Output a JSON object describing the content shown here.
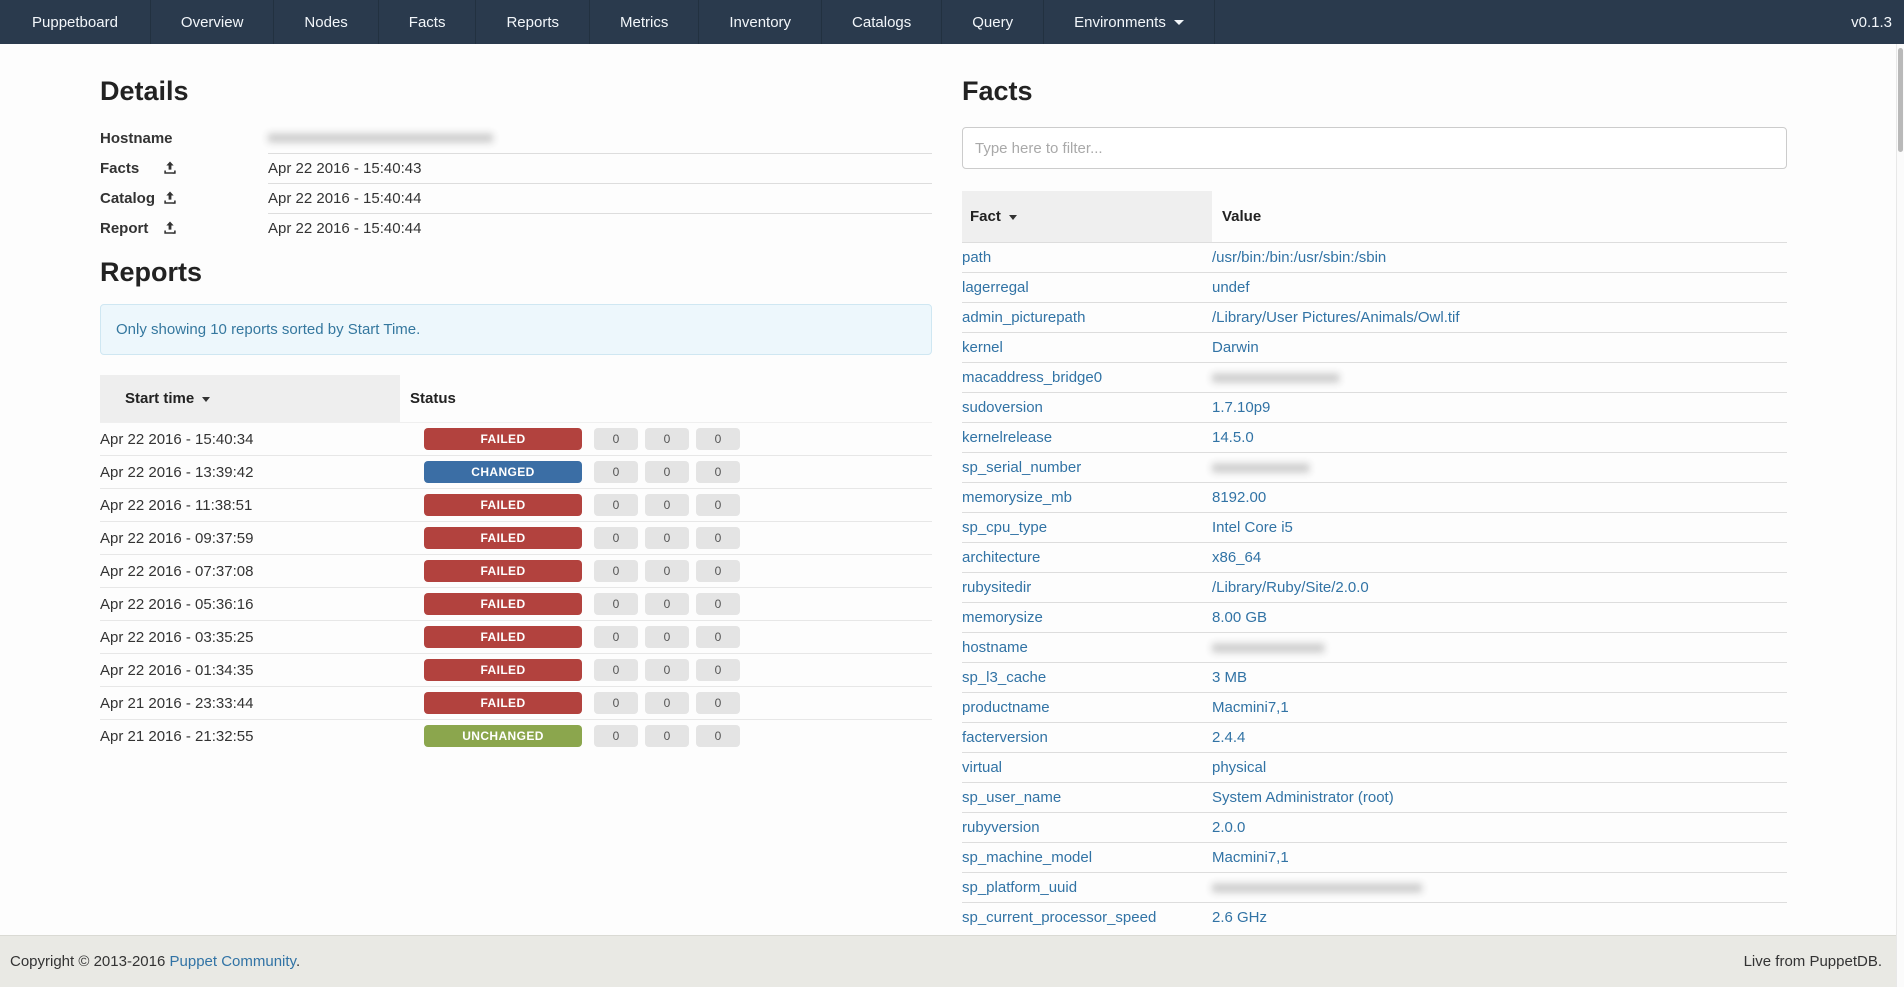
{
  "navbar": {
    "brand": "Puppetboard",
    "items": [
      "Overview",
      "Nodes",
      "Facts",
      "Reports",
      "Metrics",
      "Inventory",
      "Catalogs",
      "Query"
    ],
    "environments_label": "Environments",
    "version": "v0.1.3"
  },
  "details": {
    "title": "Details",
    "rows": [
      {
        "label": "Hostname",
        "icon": null,
        "value": "",
        "masked": true,
        "mask": "xxxxxxxxxxxxxxxxxxxxxxxxxxxxxx"
      },
      {
        "label": "Facts",
        "icon": "upload-icon",
        "value": "Apr 22 2016 - 15:40:43"
      },
      {
        "label": "Catalog",
        "icon": "upload-icon",
        "value": "Apr 22 2016 - 15:40:44"
      },
      {
        "label": "Report",
        "icon": "upload-icon",
        "value": "Apr 22 2016 - 15:40:44"
      }
    ]
  },
  "reports": {
    "title": "Reports",
    "notice": "Only showing 10 reports sorted by Start Time.",
    "col_start_time": "Start time",
    "col_status": "Status",
    "status_colors": {
      "FAILED": "#b2423e",
      "CHANGED": "#3b6ea5",
      "UNCHANGED": "#8ba64d"
    },
    "rows": [
      {
        "start_time": "Apr 22 2016 - 15:40:34",
        "status": "FAILED",
        "counts": [
          0,
          0,
          0
        ]
      },
      {
        "start_time": "Apr 22 2016 - 13:39:42",
        "status": "CHANGED",
        "counts": [
          0,
          0,
          0
        ]
      },
      {
        "start_time": "Apr 22 2016 - 11:38:51",
        "status": "FAILED",
        "counts": [
          0,
          0,
          0
        ]
      },
      {
        "start_time": "Apr 22 2016 - 09:37:59",
        "status": "FAILED",
        "counts": [
          0,
          0,
          0
        ]
      },
      {
        "start_time": "Apr 22 2016 - 07:37:08",
        "status": "FAILED",
        "counts": [
          0,
          0,
          0
        ]
      },
      {
        "start_time": "Apr 22 2016 - 05:36:16",
        "status": "FAILED",
        "counts": [
          0,
          0,
          0
        ]
      },
      {
        "start_time": "Apr 22 2016 - 03:35:25",
        "status": "FAILED",
        "counts": [
          0,
          0,
          0
        ]
      },
      {
        "start_time": "Apr 22 2016 - 01:34:35",
        "status": "FAILED",
        "counts": [
          0,
          0,
          0
        ]
      },
      {
        "start_time": "Apr 21 2016 - 23:33:44",
        "status": "FAILED",
        "counts": [
          0,
          0,
          0
        ]
      },
      {
        "start_time": "Apr 21 2016 - 21:32:55",
        "status": "UNCHANGED",
        "counts": [
          0,
          0,
          0
        ]
      }
    ]
  },
  "facts": {
    "title": "Facts",
    "filter_placeholder": "Type here to filter...",
    "col_fact": "Fact",
    "col_value": "Value",
    "rows": [
      {
        "name": "path",
        "value": "/usr/bin:/bin:/usr/sbin:/sbin"
      },
      {
        "name": "lagerregal",
        "value": "undef"
      },
      {
        "name": "admin_picturepath",
        "value": "/Library/User Pictures/Animals/Owl.tif"
      },
      {
        "name": "kernel",
        "value": "Darwin"
      },
      {
        "name": "macaddress_bridge0",
        "value": "",
        "masked": true,
        "mask": "xxxxxxxxxxxxxxxxx"
      },
      {
        "name": "sudoversion",
        "value": "1.7.10p9"
      },
      {
        "name": "kernelrelease",
        "value": "14.5.0"
      },
      {
        "name": "sp_serial_number",
        "value": "",
        "masked": true,
        "mask": "xxxxxxxxxxxxx"
      },
      {
        "name": "memorysize_mb",
        "value": "8192.00"
      },
      {
        "name": "sp_cpu_type",
        "value": "Intel Core i5"
      },
      {
        "name": "architecture",
        "value": "x86_64"
      },
      {
        "name": "rubysitedir",
        "value": "/Library/Ruby/Site/2.0.0"
      },
      {
        "name": "memorysize",
        "value": "8.00 GB"
      },
      {
        "name": "hostname",
        "value": "",
        "masked": true,
        "mask": "xxxxxxxxxxxxxxx"
      },
      {
        "name": "sp_l3_cache",
        "value": "3 MB"
      },
      {
        "name": "productname",
        "value": "Macmini7,1"
      },
      {
        "name": "facterversion",
        "value": "2.4.4"
      },
      {
        "name": "virtual",
        "value": "physical"
      },
      {
        "name": "sp_user_name",
        "value": "System Administrator (root)"
      },
      {
        "name": "rubyversion",
        "value": "2.0.0"
      },
      {
        "name": "sp_machine_model",
        "value": "Macmini7,1"
      },
      {
        "name": "sp_platform_uuid",
        "value": "",
        "masked": true,
        "mask": "xxxxxxxxxxxxxxxxxxxxxxxxxxxx"
      },
      {
        "name": "sp_current_processor_speed",
        "value": "2.6 GHz"
      }
    ]
  },
  "footer": {
    "copyright": "Copyright © 2013-2016",
    "link": "Puppet Community",
    "period": ".",
    "right": "Live from PuppetDB."
  },
  "colors": {
    "navbar_bg": "#2a3a4d",
    "link_blue": "#3173a5",
    "notice_text": "#35789f",
    "zero_badge_bg": "#e4e4e4"
  }
}
